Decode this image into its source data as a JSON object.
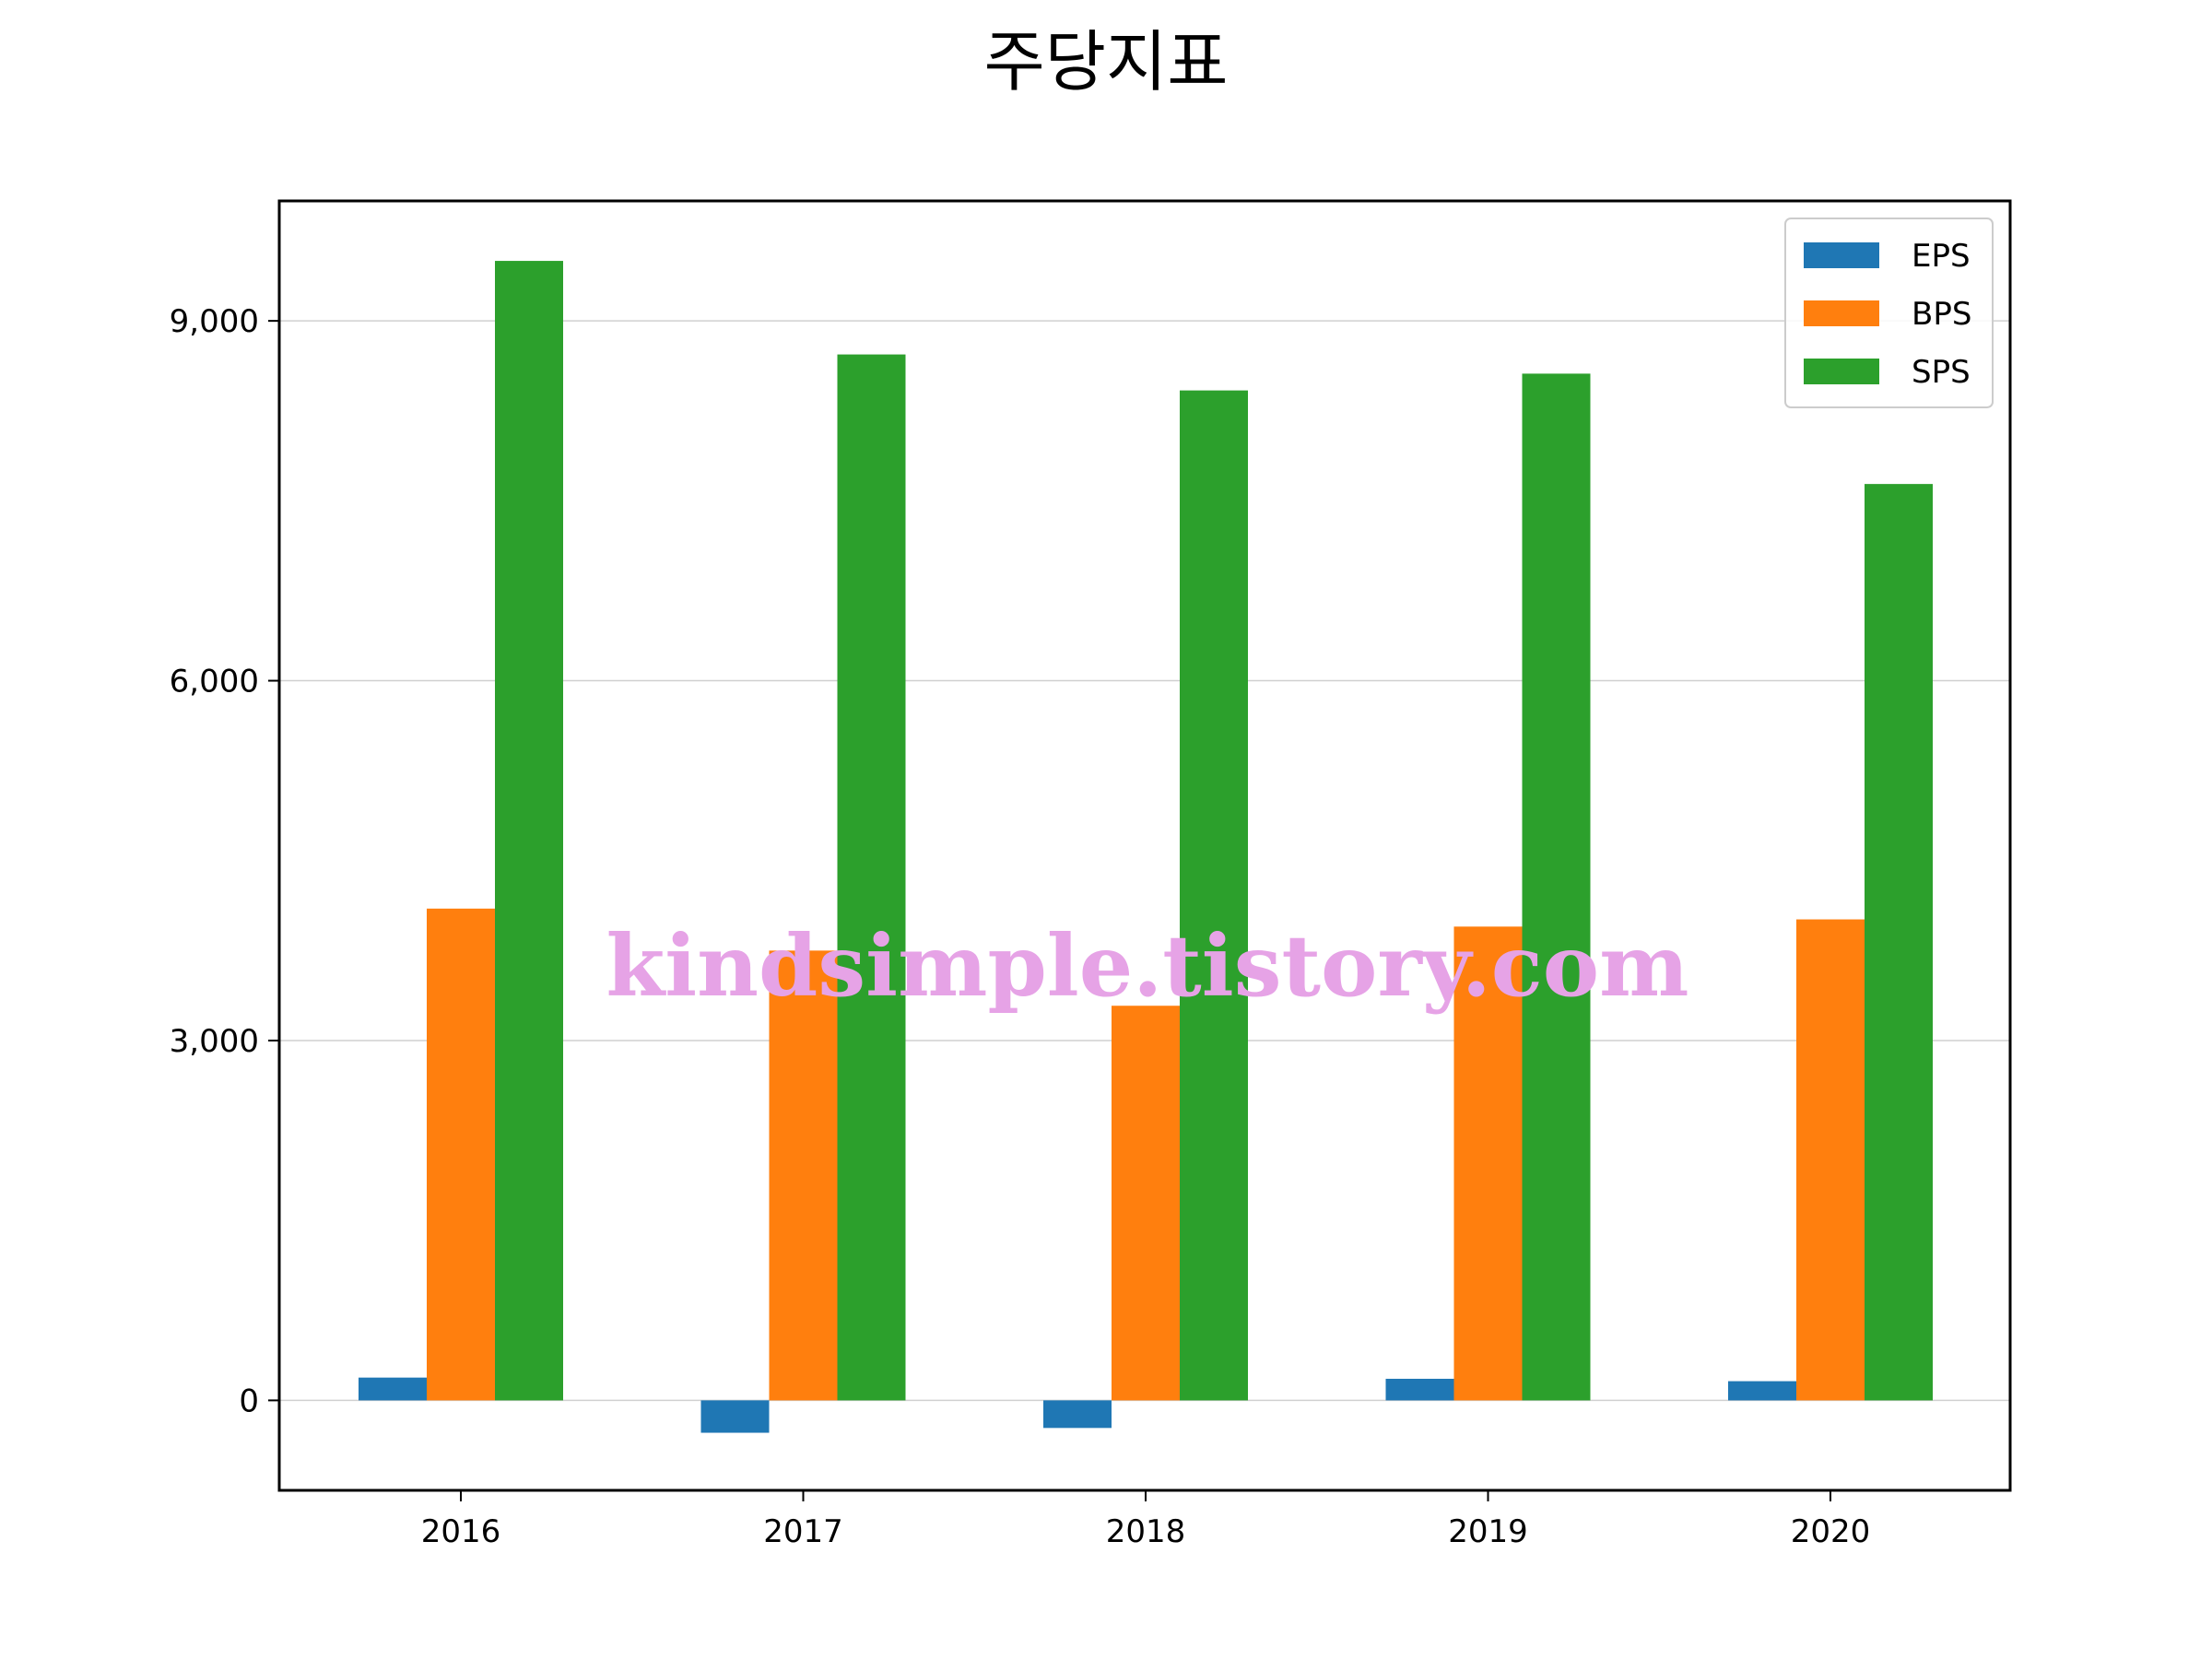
{
  "chart_data": {
    "type": "bar",
    "title": "주당지표",
    "xlabel": "",
    "ylabel": "",
    "categories": [
      "2016",
      "2017",
      "2018",
      "2019",
      "2020"
    ],
    "series": [
      {
        "name": "EPS",
        "color": "#1f77b4",
        "values": [
          190,
          -270,
          -230,
          180,
          160
        ]
      },
      {
        "name": "BPS",
        "color": "#ff7f0e",
        "values": [
          4100,
          3750,
          3290,
          3950,
          4010
        ]
      },
      {
        "name": "SPS",
        "color": "#2ca02c",
        "values": [
          9500,
          8720,
          8420,
          8560,
          7640
        ]
      }
    ],
    "ylim": [
      -750,
      10000
    ],
    "yticks": [
      0,
      3000,
      6000,
      9000
    ],
    "ytick_labels": [
      "0",
      "3,000",
      "6,000",
      "9,000"
    ],
    "grid": "horizontal",
    "legend_position": "top-right",
    "watermark": "kindsimple.tistory.com"
  }
}
